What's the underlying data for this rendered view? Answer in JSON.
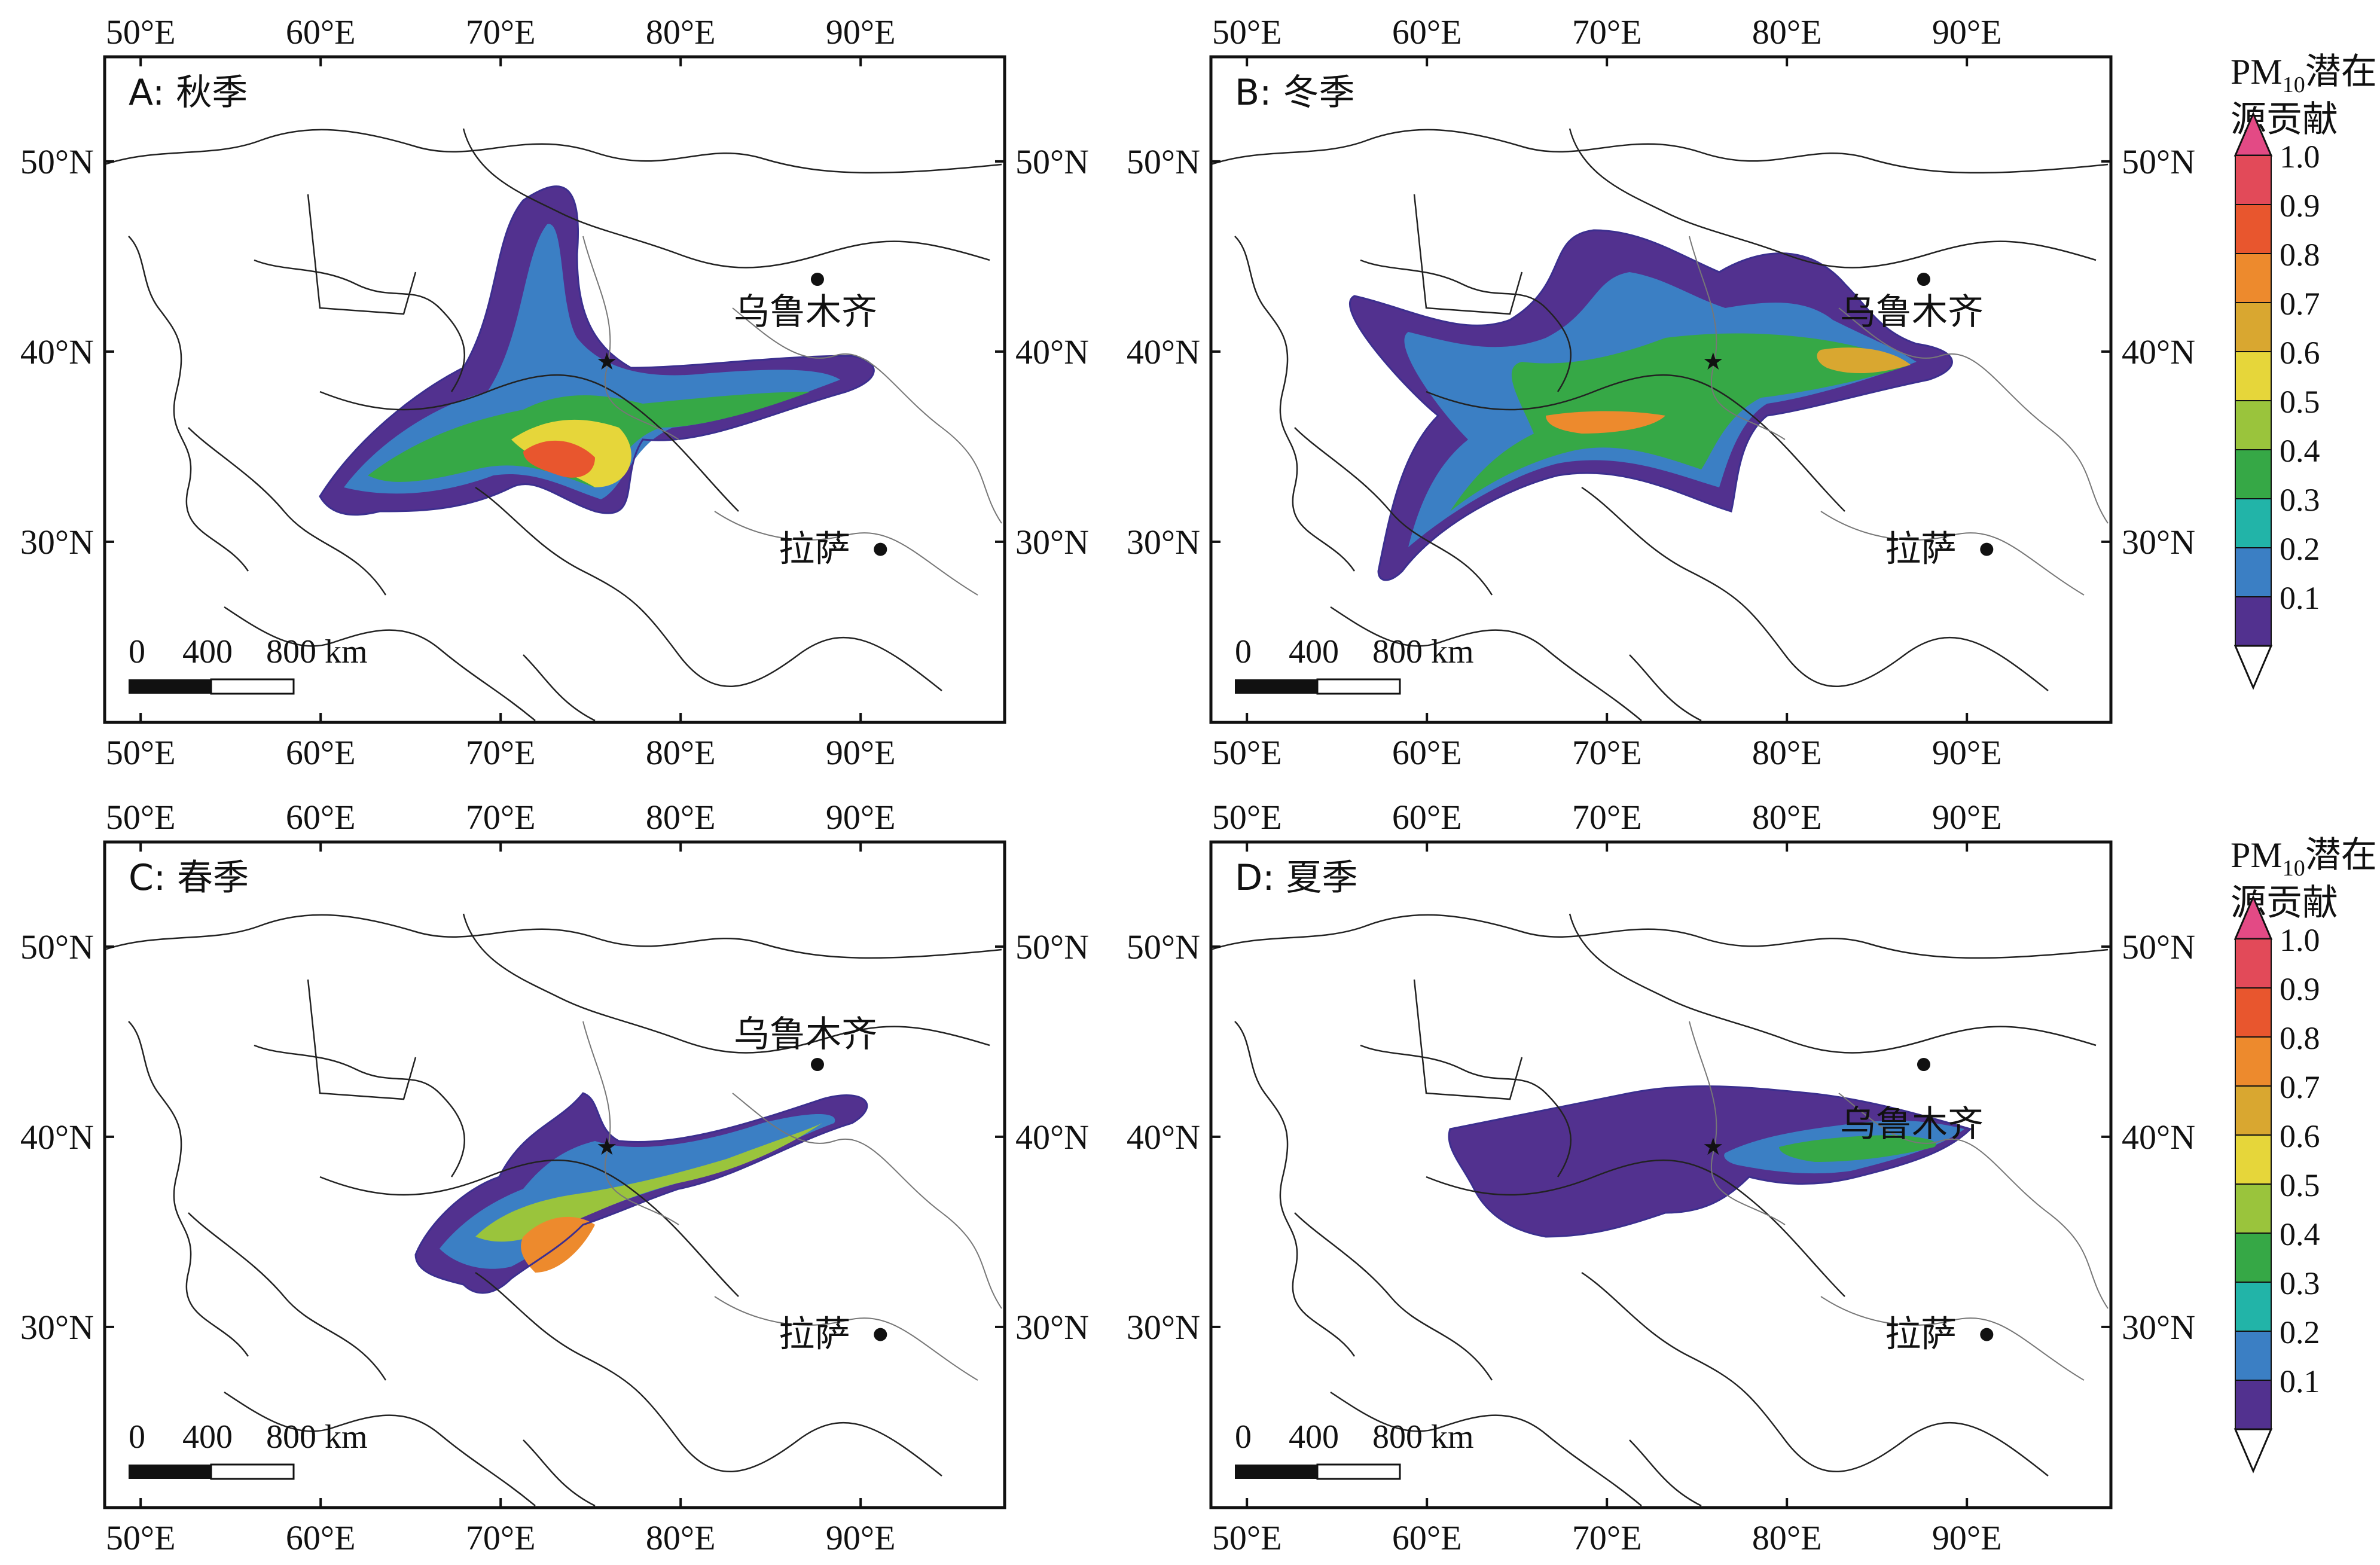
{
  "panels": [
    {
      "id": "A",
      "title": "A: 秋季",
      "season": "autumn"
    },
    {
      "id": "B",
      "title": "B: 冬季",
      "season": "winter"
    },
    {
      "id": "C",
      "title": "C: 春季",
      "season": "spring"
    },
    {
      "id": "D",
      "title": "D: 夏季",
      "season": "summer"
    }
  ],
  "axes": {
    "lon_ticks": [
      "50°E",
      "60°E",
      "70°E",
      "80°E",
      "90°E"
    ],
    "lat_ticks": [
      "50°N",
      "40°N",
      "30°N"
    ]
  },
  "cities": [
    {
      "name": "乌鲁木齐",
      "lon": 87.6,
      "lat": 43.8
    },
    {
      "name": "拉萨",
      "lon": 91.1,
      "lat": 29.6
    }
  ],
  "receptor": {
    "symbol": "★",
    "lon": 75.9,
    "lat": 39.5
  },
  "scalebar": {
    "labels": [
      "0",
      "400",
      "800 km"
    ]
  },
  "legend": {
    "title_prefix": "PM",
    "title_sub": "10",
    "title_suffix": "潜在",
    "title_line2": "源贡献",
    "levels": [
      "1.0",
      "0.9",
      "0.8",
      "0.7",
      "0.6",
      "0.5",
      "0.4",
      "0.3",
      "0.2",
      "0.1"
    ],
    "colors": [
      "#e24a59",
      "#e8562e",
      "#ed8a2d",
      "#d9a730",
      "#e6d63a",
      "#9ac43c",
      "#36a846",
      "#22b4a8",
      "#3b7fc4",
      "#52318f"
    ],
    "over_color": "#e34a85"
  }
}
